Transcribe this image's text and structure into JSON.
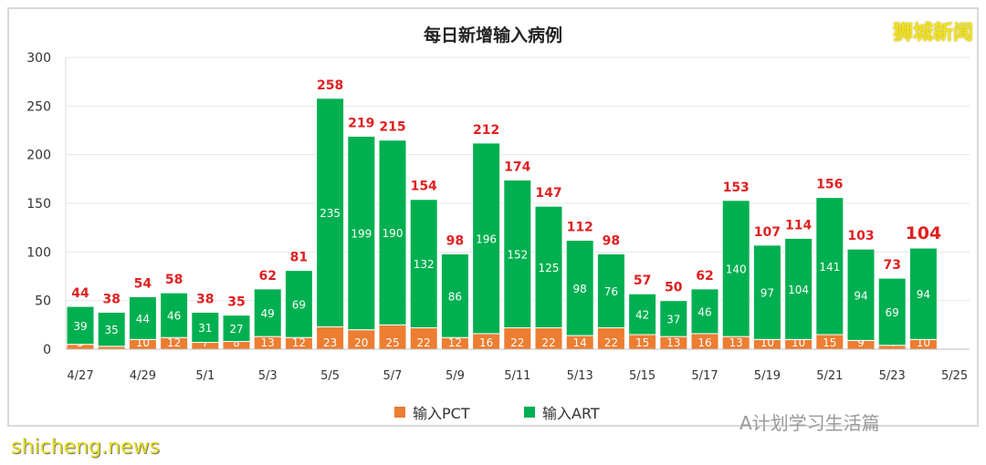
{
  "chart_data": {
    "type": "bar",
    "stacked": true,
    "title": "每日新增输入病例",
    "categories": [
      "4/27",
      "4/28",
      "4/29",
      "4/30",
      "5/1",
      "5/2",
      "5/3",
      "5/4",
      "5/5",
      "5/6",
      "5/7",
      "5/8",
      "5/9",
      "5/10",
      "5/11",
      "5/12",
      "5/13",
      "5/14",
      "5/15",
      "5/16",
      "5/17",
      "5/18",
      "5/19",
      "5/20",
      "5/21",
      "5/22",
      "5/23",
      "5/24"
    ],
    "x_tick_labels": [
      "4/27",
      "4/29",
      "5/1",
      "5/3",
      "5/5",
      "5/7",
      "5/9",
      "5/11",
      "5/13",
      "5/15",
      "5/17",
      "5/19",
      "5/21",
      "5/23",
      "5/25"
    ],
    "series": [
      {
        "name": "输入PCT",
        "color": "#ed7d31",
        "values": [
          5,
          3,
          10,
          12,
          7,
          8,
          13,
          12,
          23,
          20,
          25,
          22,
          12,
          16,
          22,
          22,
          14,
          22,
          15,
          13,
          16,
          13,
          10,
          10,
          15,
          9,
          4,
          10
        ]
      },
      {
        "name": "输入ART",
        "color": "#00b050",
        "values": [
          39,
          35,
          44,
          46,
          31,
          27,
          49,
          69,
          235,
          199,
          190,
          132,
          86,
          196,
          152,
          125,
          98,
          76,
          42,
          37,
          46,
          140,
          97,
          104,
          141,
          94,
          69,
          94
        ]
      }
    ],
    "totals": [
      44,
      38,
      54,
      58,
      38,
      35,
      62,
      81,
      258,
      219,
      215,
      154,
      98,
      212,
      174,
      147,
      112,
      98,
      57,
      50,
      62,
      153,
      107,
      114,
      156,
      103,
      73,
      104
    ],
    "total_label_color": "#e02020",
    "ylim": [
      0,
      300
    ],
    "yticks": [
      0,
      50,
      100,
      150,
      200,
      250,
      300
    ],
    "grid": true,
    "legend": "bottom"
  },
  "brand": "狮城新闻",
  "watermark": "shicheng.news",
  "wechat": "A计划学习生活篇"
}
